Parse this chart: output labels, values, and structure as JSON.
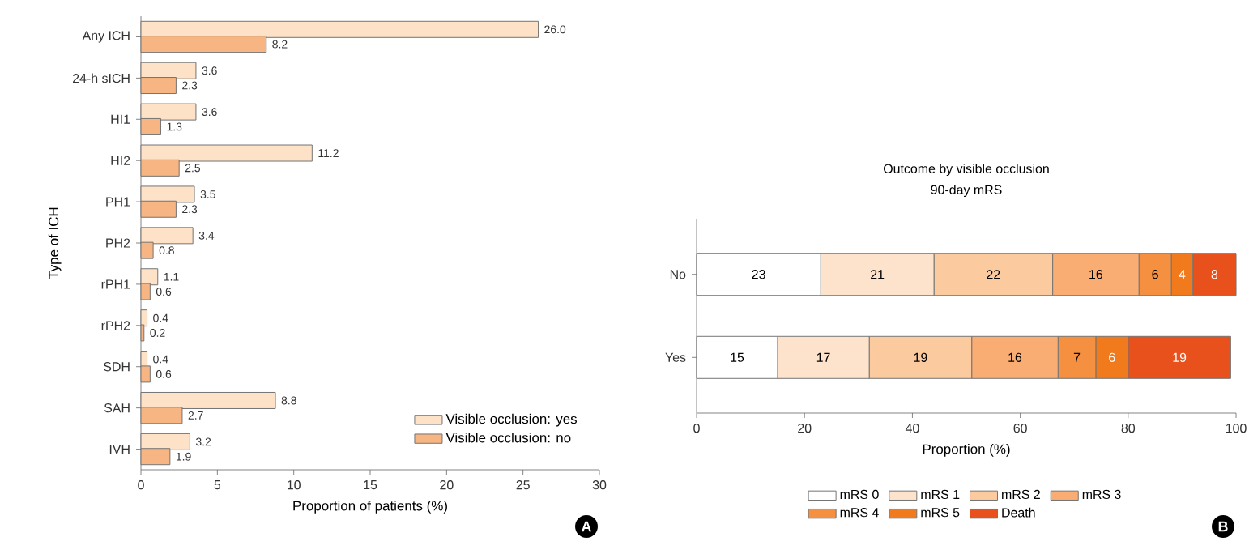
{
  "chart_data": [
    {
      "type": "bar",
      "orientation": "horizontal",
      "categories": [
        "Any ICH",
        "24-h sICH",
        "HI1",
        "HI2",
        "PH1",
        "PH2",
        "rPH1",
        "rPH2",
        "SDH",
        "SAH",
        "IVH"
      ],
      "series": [
        {
          "name": "Visible occlusion: yes",
          "color": "#fde2c8",
          "values": [
            26.0,
            3.6,
            3.6,
            11.2,
            3.5,
            3.4,
            1.1,
            0.4,
            0.4,
            8.8,
            3.2
          ],
          "value_labels": [
            "26.0",
            "3.6",
            "3.6",
            "11.2",
            "3.5",
            "3.4",
            "1.1",
            "0.4",
            "0.4",
            "8.8",
            "3.2"
          ]
        },
        {
          "name": "Visible occlusion: no",
          "color": "#f6b582",
          "values": [
            8.2,
            2.3,
            1.3,
            2.5,
            2.3,
            0.8,
            0.6,
            0.2,
            0.6,
            2.7,
            1.9
          ],
          "value_labels": [
            "8.2",
            "2.3",
            "1.3",
            "2.5",
            "2.3",
            "0.8",
            "0.6",
            "0.2",
            "0.6",
            "2.7",
            "1.9"
          ]
        }
      ],
      "xlim": [
        0,
        30
      ],
      "xticks": [
        0,
        5,
        10,
        15,
        20,
        25,
        30
      ],
      "xlabel": "Proportion of patients (%)",
      "ylabel": "Type of ICH",
      "legend": "bottom right",
      "data_labels": true,
      "annotations": [
        "A"
      ]
    },
    {
      "type": "bar",
      "orientation": "horizontal",
      "stacked": true,
      "title": "Outcome by visible occlusion",
      "subtitle": "90-day mRS",
      "categories": [
        "No",
        "Yes"
      ],
      "series": [
        {
          "name": "mRS 0",
          "color": "#ffffff",
          "values": [
            23,
            15
          ]
        },
        {
          "name": "mRS 1",
          "color": "#fde3cb",
          "values": [
            21,
            17
          ]
        },
        {
          "name": "mRS 2",
          "color": "#fcca9f",
          "values": [
            22,
            19
          ]
        },
        {
          "name": "mRS 3",
          "color": "#f9ad72",
          "values": [
            16,
            16
          ]
        },
        {
          "name": "mRS 4",
          "color": "#f4903f",
          "values": [
            6,
            7
          ]
        },
        {
          "name": "mRS 5",
          "color": "#f17a1c",
          "values": [
            4,
            6
          ]
        },
        {
          "name": "Death",
          "color": "#e8501c",
          "values": [
            8,
            19
          ]
        }
      ],
      "xlim": [
        0,
        100
      ],
      "xticks": [
        0,
        20,
        40,
        60,
        80,
        100
      ],
      "xlabel": "Proportion (%)",
      "legend": "bottom",
      "data_labels": true,
      "annotations": [
        "B"
      ]
    }
  ]
}
